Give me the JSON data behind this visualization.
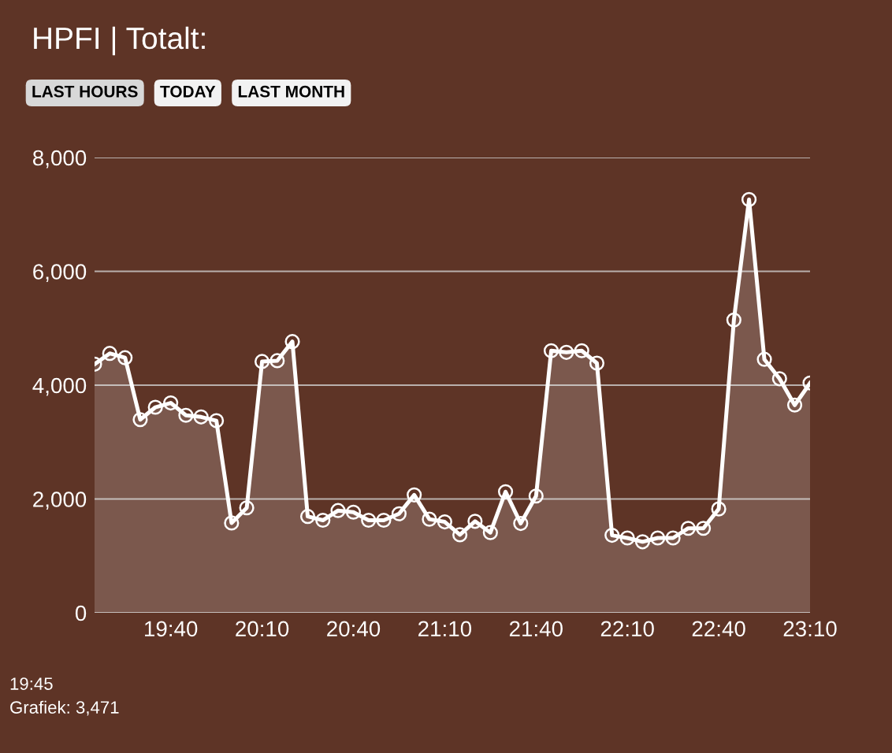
{
  "chart_data": {
    "type": "area",
    "title": "HPFI | Totalt:",
    "annotations": [
      "LAST HOURS",
      "TODAY",
      "LAST MONTH",
      "19:45",
      "Grafiek: 3,471"
    ],
    "x": [
      19.25,
      19.333,
      19.417,
      19.5,
      19.583,
      19.667,
      19.75,
      19.833,
      19.917,
      20.0,
      20.083,
      20.167,
      20.25,
      20.333,
      20.417,
      20.5,
      20.583,
      20.667,
      20.75,
      20.833,
      20.917,
      21.0,
      21.083,
      21.167,
      21.25,
      21.333,
      21.417,
      21.5,
      21.583,
      21.667,
      21.75,
      21.833,
      21.917,
      22.0,
      22.083,
      22.167,
      22.25,
      22.333,
      22.417,
      22.5,
      22.583,
      22.667,
      22.75,
      22.833,
      22.917,
      23.0,
      23.083,
      23.167
    ],
    "series": [
      {
        "color": "#ffffff",
        "values": [
          4369,
          4558,
          4482,
          3395,
          3612,
          3688,
          3471,
          3442,
          3376,
          1579,
          1844,
          4416,
          4430,
          4766,
          1693,
          1626,
          1797,
          1768,
          1626,
          1626,
          1740,
          2071,
          1645,
          1598,
          1371,
          1608,
          1409,
          2128,
          1570,
          2052,
          4605,
          4577,
          4605,
          4388,
          1362,
          1315,
          1248,
          1315,
          1315,
          1485,
          1485,
          1825,
          5144,
          7262,
          4454,
          4113,
          3650,
          4038
        ]
      }
    ],
    "xlim": [
      19.25,
      23.167
    ],
    "xticks": [
      {
        "value": 19.667,
        "label": "19:40"
      },
      {
        "value": 20.167,
        "label": "20:10"
      },
      {
        "value": 20.667,
        "label": "20:40"
      },
      {
        "value": 21.167,
        "label": "21:10"
      },
      {
        "value": 21.667,
        "label": "21:40"
      },
      {
        "value": 22.167,
        "label": "22:10"
      },
      {
        "value": 22.667,
        "label": "22:40"
      },
      {
        "value": 23.167,
        "label": "23:10"
      }
    ],
    "ylim": [
      0,
      8000
    ],
    "yticks": [
      {
        "value": 0,
        "label": "0"
      },
      {
        "value": 2000,
        "label": "2,000"
      },
      {
        "value": 4000,
        "label": "4,000"
      },
      {
        "value": 6000,
        "label": "6,000"
      },
      {
        "value": 8000,
        "label": "8,000"
      }
    ],
    "grid": "y",
    "marker": "circle",
    "line_style": "solid",
    "legend": false
  }
}
